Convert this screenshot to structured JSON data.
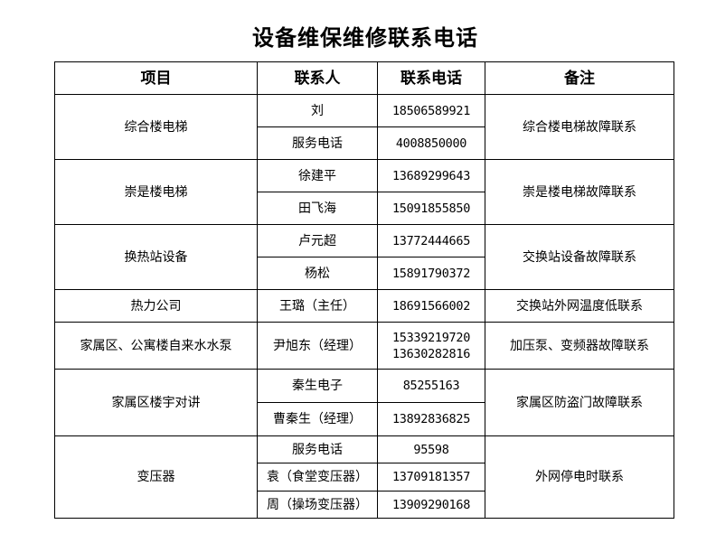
{
  "title": "设备维保维修联系电话",
  "headers": [
    "项目",
    "联系人",
    "联系电话",
    "备注"
  ],
  "groups": [
    {
      "item": "综合楼电梯",
      "note": "综合楼电梯故障联系",
      "contacts": [
        {
          "name": "刘",
          "phone": "18506589921"
        },
        {
          "name": "服务电话",
          "phone": "4008850000"
        }
      ]
    },
    {
      "item": "崇是楼电梯",
      "note": "崇是楼电梯故障联系",
      "contacts": [
        {
          "name": "徐建平",
          "phone": "13689299643"
        },
        {
          "name": "田飞海",
          "phone": "15091855850"
        }
      ]
    },
    {
      "item": "换热站设备",
      "note": "交换站设备故障联系",
      "contacts": [
        {
          "name": "卢元超",
          "phone": "13772444665"
        },
        {
          "name": "杨松",
          "phone": "15891790372"
        }
      ]
    },
    {
      "item": "热力公司",
      "note": "交换站外网温度低联系",
      "contacts": [
        {
          "name": "王璐（主任）",
          "phone": "18691566002"
        }
      ]
    },
    {
      "item": "家属区、公寓楼自来水水泵",
      "note": "加压泵、变频器故障联系",
      "contacts": [
        {
          "name": "尹旭东（经理）",
          "phone": "15339219720",
          "phone2": "13630282816"
        }
      ]
    },
    {
      "item": "家属区楼宇对讲",
      "note": "家属区防盗门故障联系",
      "contacts": [
        {
          "name": "秦生电子",
          "phone": "85255163"
        },
        {
          "name": "曹秦生（经理）",
          "phone": "13892836825"
        }
      ]
    },
    {
      "item": "变压器",
      "note": "外网停电时联系",
      "contacts": [
        {
          "name": "服务电话",
          "phone": "95598"
        },
        {
          "name": "袁（食堂变压器）",
          "phone": "13709181357"
        },
        {
          "name": "周（操场变压器）",
          "phone": "13909290168"
        }
      ]
    }
  ]
}
